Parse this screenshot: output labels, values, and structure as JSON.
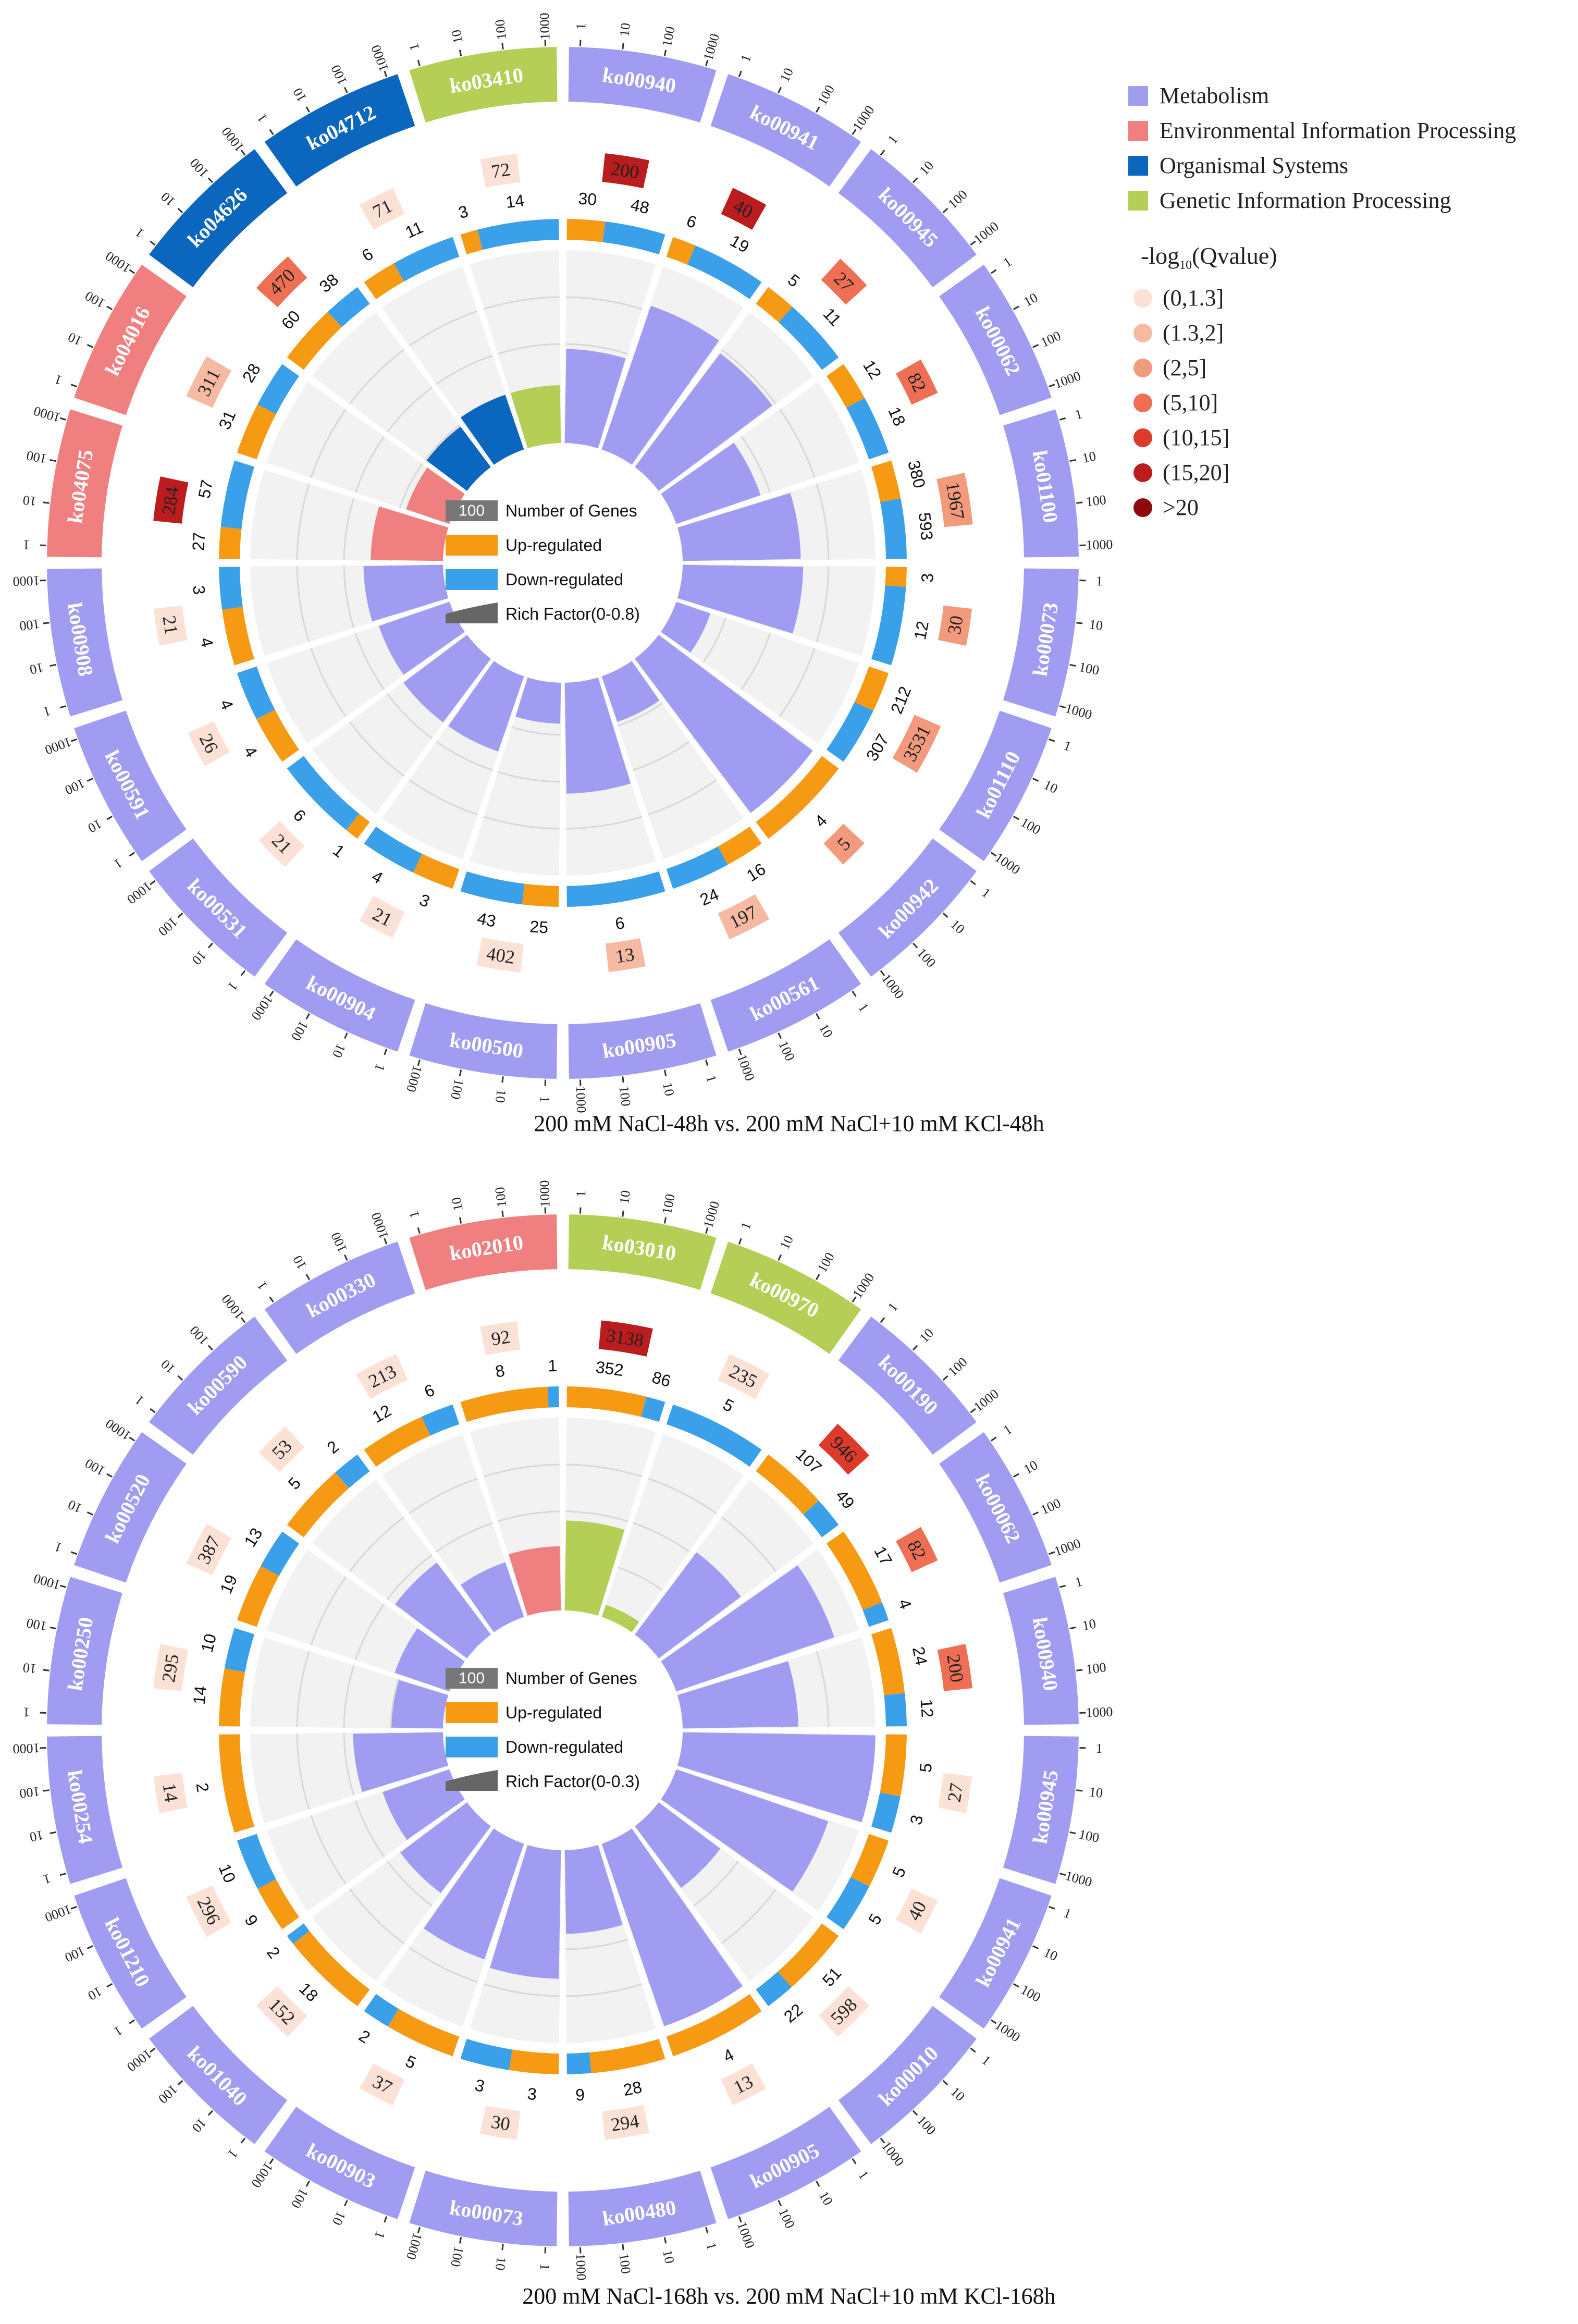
{
  "legend": {
    "categories": [
      {
        "label": "Metabolism",
        "color": "#9f9cf2"
      },
      {
        "label": "Environmental Information Processing",
        "color": "#f07f7f"
      },
      {
        "label": "Organismal Systems",
        "color": "#0b66bd"
      },
      {
        "label": "Genetic Information Processing",
        "color": "#b5cf56"
      }
    ],
    "qvalue_title": "-log10(Qvalue)",
    "qvalue_title_parts": {
      "pre": "-log",
      "sub": "10",
      "post": "(Qvalue)"
    },
    "qvalue_bins": [
      {
        "label": "(0,1.3]",
        "color": "#fbe1d6"
      },
      {
        "label": "(1.3,2]",
        "color": "#f6b9a2"
      },
      {
        "label": "(2,5]",
        "color": "#f39a7d"
      },
      {
        "label": "(5,10]",
        "color": "#ef6f55"
      },
      {
        "label": "(10,15]",
        "color": "#dd3a2c"
      },
      {
        "label": "(15,20]",
        "color": "#bb1c1e"
      },
      {
        "label": ">20",
        "color": "#8f0a0f"
      }
    ]
  },
  "chart_data": [
    {
      "type": "circos",
      "title": "200 mM NaCl-48h vs. 200 mM NaCl+10 mM KCl-48h",
      "inner_legend": {
        "number_label": "Number of Genes",
        "number_value": "100",
        "up_label": "Up-regulated",
        "down_label": "Down-regulated",
        "rich_label": "Rich Factor(0-0.8)"
      },
      "rich_max": 0.8,
      "scale_ticks": [
        "1",
        "10",
        "100",
        "1000"
      ],
      "terms": [
        {
          "id": "ko00940",
          "category": "Metabolism",
          "count": 200,
          "qbin": 5,
          "up": 30,
          "down": 48,
          "rich": 0.39
        },
        {
          "id": "ko00941",
          "category": "Metabolism",
          "count": 40,
          "qbin": 5,
          "up": 6,
          "down": 19,
          "rich": 0.63
        },
        {
          "id": "ko00945",
          "category": "Metabolism",
          "count": 27,
          "qbin": 3,
          "up": 5,
          "down": 11,
          "rich": 0.59
        },
        {
          "id": "ko00062",
          "category": "Metabolism",
          "count": 82,
          "qbin": 3,
          "up": 12,
          "down": 18,
          "rich": 0.37
        },
        {
          "id": "ko01100",
          "category": "Metabolism",
          "count": 1967,
          "qbin": 2,
          "up": 380,
          "down": 593,
          "rich": 0.49
        },
        {
          "id": "ko00073",
          "category": "Metabolism",
          "count": 30,
          "qbin": 2,
          "up": 3,
          "down": 12,
          "rich": 0.5
        },
        {
          "id": "ko01110",
          "category": "Metabolism",
          "count": 3531,
          "qbin": 2,
          "up": 212,
          "down": 307,
          "rich": 0.15
        },
        {
          "id": "ko00942",
          "category": "Metabolism",
          "count": 5,
          "qbin": 2,
          "up": 4,
          "down": 0,
          "rich": 0.8
        },
        {
          "id": "ko00561",
          "category": "Metabolism",
          "count": 197,
          "qbin": 1,
          "up": 16,
          "down": 24,
          "rich": 0.2
        },
        {
          "id": "ko00905",
          "category": "Metabolism",
          "count": 13,
          "qbin": 1,
          "up": 0,
          "down": 6,
          "rich": 0.46
        },
        {
          "id": "ko00500",
          "category": "Metabolism",
          "count": 402,
          "qbin": 0,
          "up": 25,
          "down": 43,
          "rich": 0.17
        },
        {
          "id": "ko00904",
          "category": "Metabolism",
          "count": 21,
          "qbin": 0,
          "up": 3,
          "down": 4,
          "rich": 0.33
        },
        {
          "id": "ko00531",
          "category": "Metabolism",
          "count": 21,
          "qbin": 0,
          "up": 1,
          "down": 6,
          "rich": 0.33
        },
        {
          "id": "ko00591",
          "category": "Metabolism",
          "count": 26,
          "qbin": 0,
          "up": 4,
          "down": 4,
          "rich": 0.31
        },
        {
          "id": "ko00908",
          "category": "Metabolism",
          "count": 21,
          "qbin": 0,
          "up": 4,
          "down": 3,
          "rich": 0.33
        },
        {
          "id": "ko04075",
          "category": "Environmental Information Processing",
          "count": 284,
          "qbin": 5,
          "up": 27,
          "down": 57,
          "rich": 0.3
        },
        {
          "id": "ko04016",
          "category": "Environmental Information Processing",
          "count": 311,
          "qbin": 1,
          "up": 31,
          "down": 28,
          "rich": 0.19
        },
        {
          "id": "ko04626",
          "category": "Organismal Systems",
          "count": 470,
          "qbin": 3,
          "up": 60,
          "down": 38,
          "rich": 0.21
        },
        {
          "id": "ko04712",
          "category": "Organismal Systems",
          "count": 71,
          "qbin": 0,
          "up": 6,
          "down": 11,
          "rich": 0.24
        },
        {
          "id": "ko03410",
          "category": "Genetic Information Processing",
          "count": 72,
          "qbin": 0,
          "up": 3,
          "down": 14,
          "rich": 0.24
        }
      ]
    },
    {
      "type": "circos",
      "title": "200 mM NaCl-168h vs. 200 mM NaCl+10 mM KCl-168h",
      "inner_legend": {
        "number_label": "Number of Genes",
        "number_value": "100",
        "up_label": "Up-regulated",
        "down_label": "Down-regulated",
        "rich_label": "Rich Factor(0-0.3)"
      },
      "rich_max": 0.3,
      "scale_ticks": [
        "1",
        "10",
        "100",
        "1000"
      ],
      "terms": [
        {
          "id": "ko03010",
          "category": "Genetic Information Processing",
          "count": 3138,
          "qbin": 5,
          "up": 352,
          "down": 86,
          "rich": 0.14
        },
        {
          "id": "ko00970",
          "category": "Genetic Information Processing",
          "count": 235,
          "qbin": 0,
          "up": 0,
          "down": 5,
          "rich": 0.02
        },
        {
          "id": "ko00190",
          "category": "Metabolism",
          "count": 946,
          "qbin": 4,
          "up": 107,
          "down": 49,
          "rich": 0.16
        },
        {
          "id": "ko00062",
          "category": "Metabolism",
          "count": 82,
          "qbin": 3,
          "up": 17,
          "down": 4,
          "rich": 0.26
        },
        {
          "id": "ko00940",
          "category": "Metabolism",
          "count": 200,
          "qbin": 3,
          "up": 24,
          "down": 12,
          "rich": 0.18
        },
        {
          "id": "ko00945",
          "category": "Metabolism",
          "count": 27,
          "qbin": 0,
          "up": 5,
          "down": 3,
          "rich": 0.3
        },
        {
          "id": "ko00941",
          "category": "Metabolism",
          "count": 40,
          "qbin": 0,
          "up": 5,
          "down": 5,
          "rich": 0.25
        },
        {
          "id": "ko00010",
          "category": "Metabolism",
          "count": 598,
          "qbin": 0,
          "up": 51,
          "down": 22,
          "rich": 0.12
        },
        {
          "id": "ko00905",
          "category": "Metabolism",
          "count": 13,
          "qbin": 0,
          "up": 4,
          "down": 0,
          "rich": 0.31
        },
        {
          "id": "ko00480",
          "category": "Metabolism",
          "count": 294,
          "qbin": 0,
          "up": 28,
          "down": 9,
          "rich": 0.13
        },
        {
          "id": "ko00073",
          "category": "Metabolism",
          "count": 30,
          "qbin": 0,
          "up": 3,
          "down": 3,
          "rich": 0.2
        },
        {
          "id": "ko00903",
          "category": "Metabolism",
          "count": 37,
          "qbin": 0,
          "up": 5,
          "down": 2,
          "rich": 0.19
        },
        {
          "id": "ko01040",
          "category": "Metabolism",
          "count": 152,
          "qbin": 0,
          "up": 18,
          "down": 2,
          "rich": 0.13
        },
        {
          "id": "ko01210",
          "category": "Metabolism",
          "count": 296,
          "qbin": 0,
          "up": 9,
          "down": 10,
          "rich": 0.11
        },
        {
          "id": "ko00254",
          "category": "Metabolism",
          "count": 14,
          "qbin": 0,
          "up": 2,
          "down": 0,
          "rich": 0.14
        },
        {
          "id": "ko00250",
          "category": "Metabolism",
          "count": 295,
          "qbin": 0,
          "up": 14,
          "down": 10,
          "rich": 0.08
        },
        {
          "id": "ko00520",
          "category": "Metabolism",
          "count": 387,
          "qbin": 0,
          "up": 19,
          "down": 13,
          "rich": 0.09
        },
        {
          "id": "ko00590",
          "category": "Metabolism",
          "count": 53,
          "qbin": 0,
          "up": 5,
          "down": 2,
          "rich": 0.14
        },
        {
          "id": "ko00330",
          "category": "Metabolism",
          "count": 213,
          "qbin": 0,
          "up": 12,
          "down": 6,
          "rich": 0.09
        },
        {
          "id": "ko02010",
          "category": "Environmental Information Processing",
          "count": 92,
          "qbin": 0,
          "up": 8,
          "down": 1,
          "rich": 0.1
        }
      ]
    }
  ]
}
